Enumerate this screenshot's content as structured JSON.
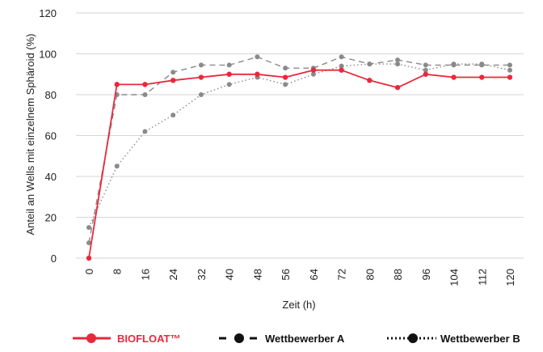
{
  "chart_data": {
    "type": "line",
    "title": "",
    "xlabel": "Zeit (h)",
    "ylabel": "Anteil an Wells mit einzelnem Sphäroid (%)",
    "x": [
      0,
      8,
      16,
      24,
      32,
      40,
      48,
      56,
      64,
      72,
      80,
      88,
      96,
      104,
      112,
      120
    ],
    "x_ticks": [
      "0",
      "8",
      "16",
      "24",
      "32",
      "40",
      "48",
      "56",
      "64",
      "72",
      "80",
      "88",
      "96",
      "104",
      "112",
      "120"
    ],
    "y_ticks": [
      "0",
      "20",
      "40",
      "60",
      "80",
      "100",
      "120"
    ],
    "ylim": [
      0,
      120
    ],
    "grid": "horizontal",
    "legend_position": "bottom",
    "series": [
      {
        "name": "BIOFLOAT™",
        "style": "solid",
        "color": "#e8293b",
        "values": [
          0,
          85,
          85,
          87,
          88.5,
          90,
          90,
          88.5,
          92,
          92,
          87,
          83.5,
          90,
          88.5,
          88.5,
          88.5
        ]
      },
      {
        "name": "Wettbewerber A",
        "style": "dashed",
        "color": "#8a8a8a",
        "values": [
          7.5,
          80,
          80,
          91,
          94.5,
          94.5,
          98.5,
          93,
          93,
          98.5,
          95,
          97,
          94.5,
          94.5,
          94.5,
          94.5
        ]
      },
      {
        "name": "Wettbewerber B",
        "style": "dotted",
        "color": "#8a8a8a",
        "values": [
          15,
          45,
          62,
          70,
          80,
          85,
          88.5,
          85,
          90,
          94,
          95,
          95,
          92,
          95,
          95,
          92
        ]
      }
    ]
  }
}
